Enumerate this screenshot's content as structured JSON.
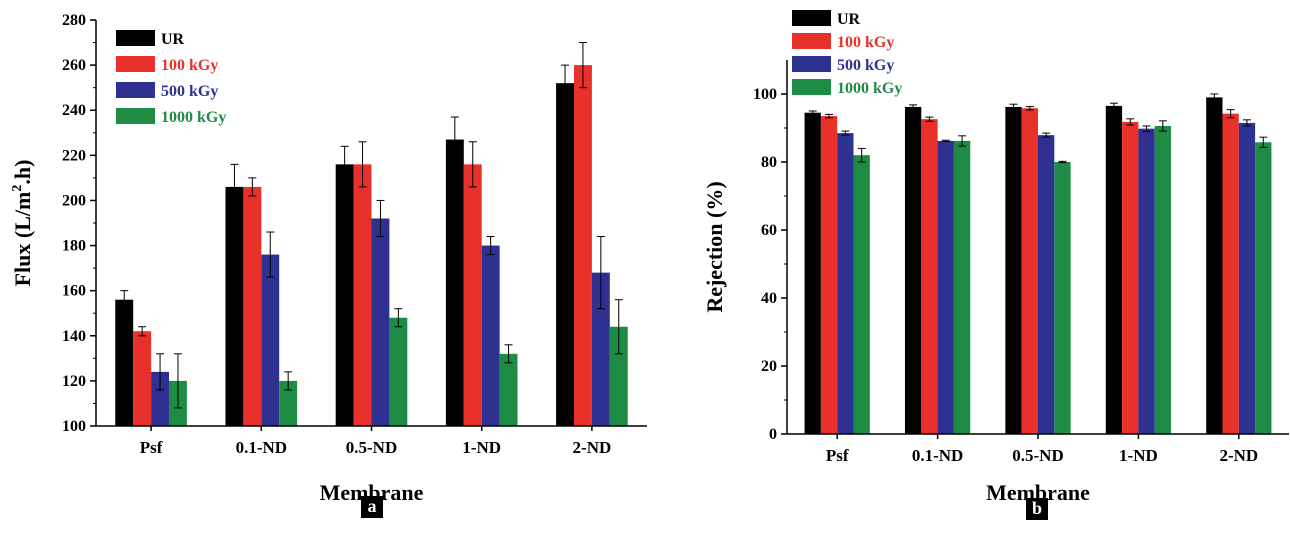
{
  "figure": {
    "panels": [
      {
        "tag": "a"
      },
      {
        "tag": "b"
      }
    ]
  },
  "colors": {
    "UR": "#000000",
    "100 kGy": "#e8312a",
    "500 kGy": "#2e3192",
    "1000 kGy": "#1e8c45"
  },
  "chart_data": [
    {
      "type": "bar",
      "panel": "a",
      "categories": [
        "Psf",
        "0.1-ND",
        "0.5-ND",
        "1-ND",
        "2-ND"
      ],
      "series": [
        {
          "name": "UR",
          "values": [
            156,
            206,
            216,
            227,
            252
          ],
          "errors": [
            4,
            10,
            8,
            10,
            8
          ]
        },
        {
          "name": "100 kGy",
          "values": [
            142,
            206,
            216,
            216,
            260
          ],
          "errors": [
            2,
            4,
            10,
            10,
            10
          ]
        },
        {
          "name": "500 kGy",
          "values": [
            124,
            176,
            192,
            180,
            168
          ],
          "errors": [
            8,
            10,
            8,
            4,
            16
          ]
        },
        {
          "name": "1000 kGy",
          "values": [
            120,
            120,
            148,
            132,
            144
          ],
          "errors": [
            12,
            4,
            4,
            4,
            12
          ]
        }
      ],
      "xlabel": "Membrane",
      "ylabel": {
        "main": "Flux (L/m",
        "sup": "2",
        "end": ".h)"
      },
      "ylim": [
        100,
        280
      ],
      "yticks": [
        100,
        120,
        140,
        160,
        180,
        200,
        220,
        240,
        260,
        280
      ],
      "legend": "top-left",
      "grid": false
    },
    {
      "type": "bar",
      "panel": "b",
      "categories": [
        "Psf",
        "0.1-ND",
        "0.5-ND",
        "1-ND",
        "2-ND"
      ],
      "series": [
        {
          "name": "UR",
          "values": [
            94.5,
            96.2,
            96.2,
            96.5,
            99
          ],
          "errors": [
            0.5,
            0.6,
            0.8,
            0.8,
            1
          ]
        },
        {
          "name": "100 kGy",
          "values": [
            93.5,
            92.6,
            95.8,
            91.8,
            94.2
          ],
          "errors": [
            0.5,
            0.6,
            0.5,
            0.9,
            1.2
          ]
        },
        {
          "name": "500 kGy",
          "values": [
            88.5,
            86.2,
            87.9,
            89.8,
            91.5
          ],
          "errors": [
            0.6,
            0.2,
            0.6,
            0.8,
            0.9
          ]
        },
        {
          "name": "1000 kGy",
          "values": [
            82,
            86.2,
            80,
            90.6,
            85.8
          ],
          "errors": [
            2,
            1.5,
            0.2,
            1.5,
            1.5
          ]
        }
      ],
      "xlabel": "Membrane",
      "ylabel": "Rejection (%)",
      "ylim": [
        0,
        110
      ],
      "yticks": [
        0,
        20,
        40,
        60,
        80,
        100
      ],
      "legend": "top-left",
      "grid": false
    }
  ]
}
